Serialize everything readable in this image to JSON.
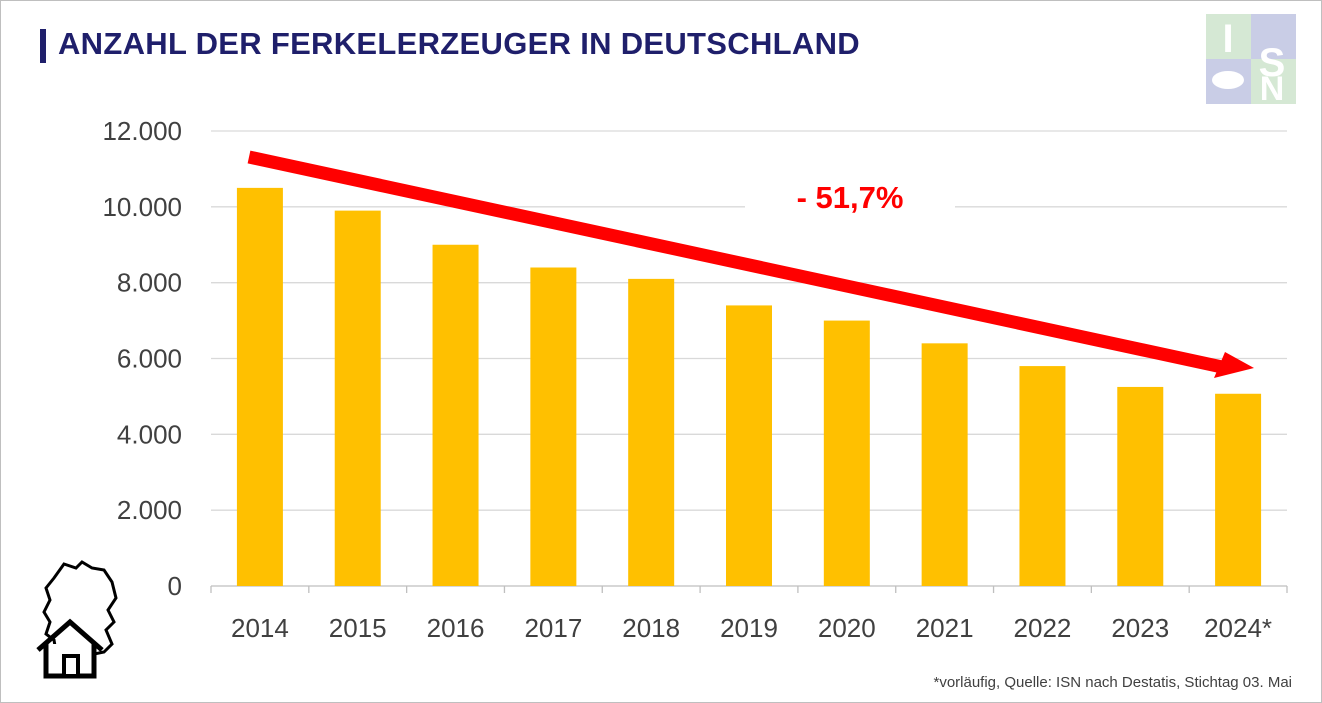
{
  "title": "ANZAHL DER FERKELERZEUGER IN DEUTSCHLAND",
  "logo": {
    "letters": [
      "I",
      "S",
      "N"
    ]
  },
  "footnote": "*vorläufig, Quelle: ISN nach Destatis, Stichtag 03. Mai",
  "colors": {
    "bar": "#ffc000",
    "arrow": "#ff0000",
    "title": "#1f1f6b"
  },
  "chart_data": {
    "type": "bar",
    "title": "ANZAHL DER FERKELERZEUGER IN DEUTSCHLAND",
    "categories": [
      "2014",
      "2015",
      "2016",
      "2017",
      "2018",
      "2019",
      "2020",
      "2021",
      "2022",
      "2023",
      "2024*"
    ],
    "values": [
      10500,
      9900,
      9000,
      8400,
      8100,
      7400,
      7000,
      6400,
      5800,
      5250,
      5070
    ],
    "yticks": [
      "0",
      "2.000",
      "4.000",
      "6.000",
      "8.000",
      "10.000",
      "12.000"
    ],
    "ylim": [
      0,
      12000
    ],
    "grid": true,
    "annotation": "- 51,7%"
  }
}
